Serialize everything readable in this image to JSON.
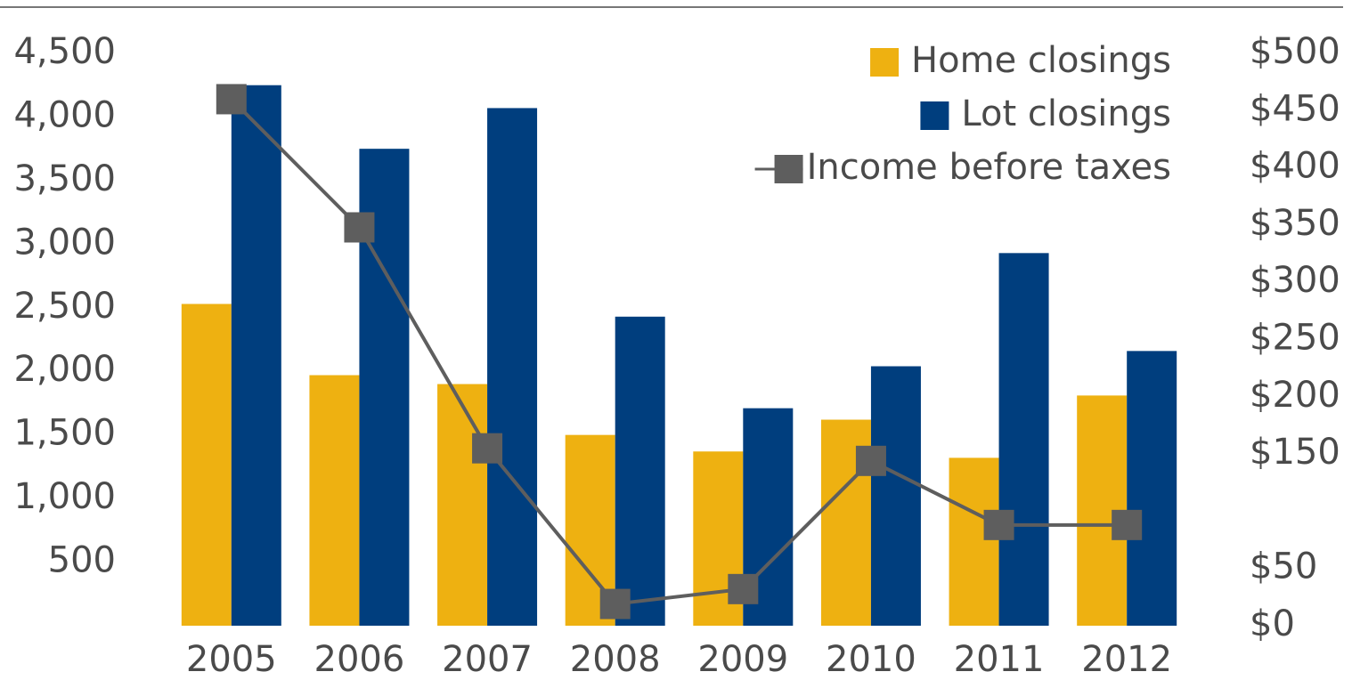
{
  "chart_data": {
    "type": "bar",
    "categories": [
      "2005",
      "2006",
      "2007",
      "2008",
      "2009",
      "2010",
      "2011",
      "2012"
    ],
    "series": [
      {
        "name": "Home closings",
        "color": "#eeb111",
        "values": [
          2530,
          1970,
          1900,
          1500,
          1370,
          1620,
          1320,
          1810
        ]
      },
      {
        "name": "Lot closings",
        "color": "#003e7e",
        "values": [
          4250,
          3750,
          4070,
          2430,
          1710,
          2040,
          2930,
          2160
        ]
      },
      {
        "name": "Income before taxes",
        "color": "#5e5e5e",
        "type": "line",
        "axis": "y2",
        "values": [
          460,
          348,
          155,
          19,
          32,
          144,
          88,
          88
        ]
      }
    ],
    "ylim": [
      0,
      4500
    ],
    "yticks": [
      {
        "value": 500,
        "label": "500"
      },
      {
        "value": 1000,
        "label": "1,000"
      },
      {
        "value": 1500,
        "label": "1,500"
      },
      {
        "value": 2000,
        "label": "2,000"
      },
      {
        "value": 2500,
        "label": "2,500"
      },
      {
        "value": 3000,
        "label": "3,000"
      },
      {
        "value": 3500,
        "label": "3,500"
      },
      {
        "value": 4000,
        "label": "4,000"
      },
      {
        "value": 4500,
        "label": "4,500"
      }
    ],
    "y2lim": [
      0,
      500
    ],
    "y2ticks": [
      {
        "value": 0,
        "label": "$0"
      },
      {
        "value": 50,
        "label": "$50"
      },
      {
        "value": 150,
        "label": "$150"
      },
      {
        "value": 200,
        "label": "$200"
      },
      {
        "value": 250,
        "label": "$250"
      },
      {
        "value": 300,
        "label": "$300"
      },
      {
        "value": 350,
        "label": "$350"
      },
      {
        "value": 400,
        "label": "$400"
      },
      {
        "value": 450,
        "label": "$450"
      },
      {
        "value": 500,
        "label": "$500"
      }
    ],
    "legend": "top-right"
  }
}
